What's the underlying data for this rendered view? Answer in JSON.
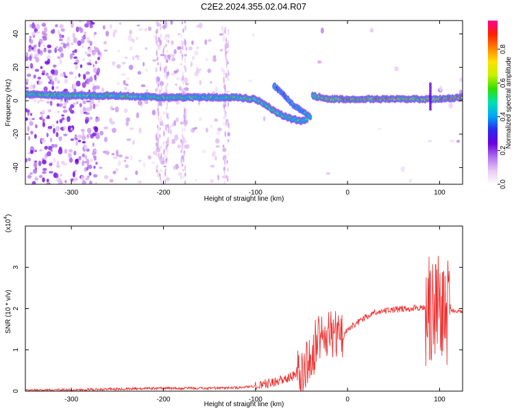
{
  "title": "C2E2.2024.355.02.04.R07",
  "chart_data": [
    {
      "type": "heatmap",
      "xlabel": "Height of straight line (km)",
      "ylabel": "Frequency (Hz)",
      "xlim": [
        -350,
        125
      ],
      "ylim": [
        -50,
        48
      ],
      "xticks": [
        -300,
        -200,
        -100,
        0,
        100
      ],
      "yticks": [
        -40,
        -20,
        0,
        20,
        40
      ],
      "xtick_labels": [
        "-300",
        "-200",
        "-100",
        "0",
        "100"
      ],
      "ytick_labels": [
        "-40",
        "-20",
        "0",
        "20",
        "40"
      ],
      "colorbar": {
        "label": "Normalized spectral amplitude",
        "range": [
          0,
          0.97
        ],
        "ticks": [
          0.0,
          0.2,
          0.4,
          0.6,
          0.8
        ],
        "tick_labels": [
          "0.0",
          "0.2",
          "0.4",
          "0.6",
          "0.8"
        ],
        "colormap": [
          "#ffffff",
          "#e8c8f4",
          "#b070ee",
          "#6a00e0",
          "#2a2af0",
          "#00a8f8",
          "#00e0b0",
          "#30e000",
          "#c8f000",
          "#ffe000",
          "#ff8000",
          "#ff2000",
          "#ff0090"
        ]
      },
      "carrier_track": [
        {
          "x": -350,
          "y": 4
        },
        {
          "x": -300,
          "y": 3
        },
        {
          "x": -250,
          "y": 3
        },
        {
          "x": -200,
          "y": 2
        },
        {
          "x": -150,
          "y": 2
        },
        {
          "x": -120,
          "y": 2
        },
        {
          "x": -100,
          "y": 1
        },
        {
          "x": -90,
          "y": -2
        },
        {
          "x": -80,
          "y": -6
        },
        {
          "x": -70,
          "y": -9
        },
        {
          "x": -60,
          "y": -11
        },
        {
          "x": -50,
          "y": -12
        },
        {
          "x": -42,
          "y": -11
        },
        {
          "x": -38,
          "y": 3
        },
        {
          "x": -20,
          "y": 1
        },
        {
          "x": 0,
          "y": 1
        },
        {
          "x": 50,
          "y": 1
        },
        {
          "x": 100,
          "y": 1
        },
        {
          "x": 125,
          "y": 2
        }
      ],
      "secondary_track": [
        {
          "x": -80,
          "y": 9
        },
        {
          "x": -70,
          "y": 4
        },
        {
          "x": -60,
          "y": -2
        },
        {
          "x": -50,
          "y": -6
        },
        {
          "x": -40,
          "y": -10
        }
      ]
    },
    {
      "type": "line",
      "xlabel": "Height of straight line (km)",
      "ylabel": "SNR (10 * v/v)",
      "scale_label": "(x10",
      "scale_exponent": "4",
      "xlim": [
        -350,
        125
      ],
      "ylim": [
        0,
        4.0
      ],
      "xticks": [
        -300,
        -200,
        -100,
        0,
        100
      ],
      "yticks": [
        0,
        1,
        2,
        3
      ],
      "xtick_labels": [
        "-300",
        "-200",
        "-100",
        "0",
        "100"
      ],
      "ytick_labels": [
        "0",
        "1",
        "2",
        "3"
      ],
      "color": "#ee3030",
      "series": [
        {
          "x": [
            -350,
            -300,
            -250,
            -200,
            -150,
            -120,
            -100,
            -90,
            -80,
            -70,
            -60,
            -50,
            -45,
            -40,
            -35,
            -30,
            -25,
            -20,
            -15,
            -10,
            -5,
            0,
            10,
            20,
            30,
            40,
            50,
            60,
            70,
            80,
            90,
            95,
            100,
            105,
            110,
            115,
            125
          ],
          "y": [
            0.02,
            0.03,
            0.05,
            0.07,
            0.07,
            0.08,
            0.12,
            0.17,
            0.22,
            0.28,
            0.35,
            0.45,
            0.6,
            0.85,
            1.1,
            1.35,
            1.5,
            1.4,
            1.45,
            1.25,
            1.3,
            1.5,
            1.65,
            1.8,
            1.9,
            1.95,
            1.97,
            2.0,
            2.0,
            2.02,
            1.98,
            2.1,
            2.15,
            1.5,
            1.95,
            1.96,
            1.93
          ]
        }
      ]
    }
  ]
}
